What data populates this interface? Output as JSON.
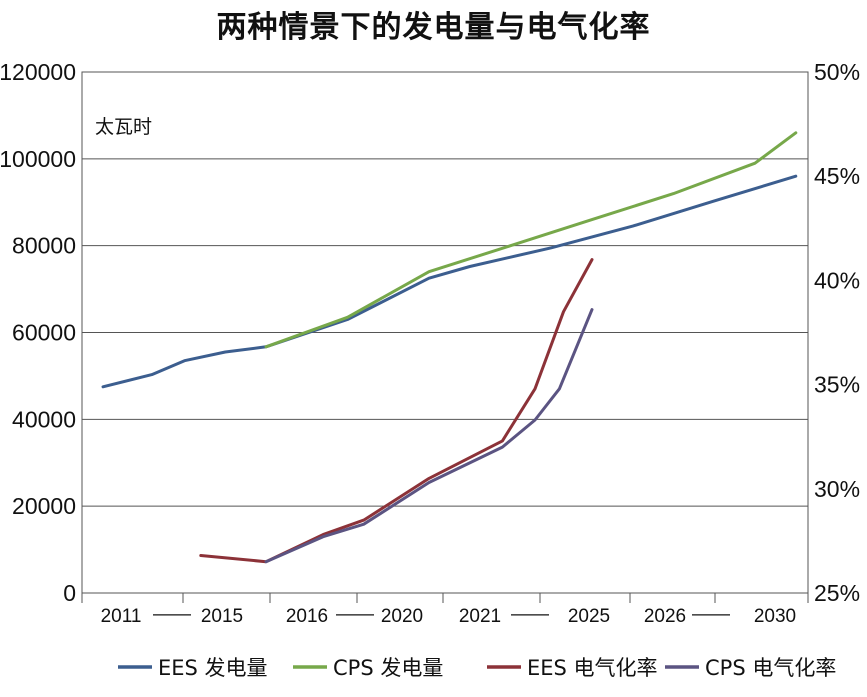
{
  "chart_data": {
    "type": "line",
    "title": "两种情景下的发电量与电气化率",
    "unit_label": "太瓦时",
    "categories": [
      "2011",
      "2015",
      "2016",
      "2020",
      "2021",
      "2025",
      "2026",
      "2030"
    ],
    "category_separators": [
      "——",
      "——",
      "——",
      "——"
    ],
    "y_left": {
      "min": 0,
      "max": 120000,
      "step": 20000,
      "ticks": [
        "0",
        "20000",
        "40000",
        "60000",
        "80000",
        "100000",
        "120000"
      ]
    },
    "y_right": {
      "min": 25,
      "max": 50,
      "step": 5,
      "ticks": [
        "25%",
        "30%",
        "35%",
        "40%",
        "45%",
        "50%"
      ]
    },
    "grid": true,
    "legend_position": "bottom",
    "series": [
      {
        "name": "EES 发电量",
        "axis": "left",
        "color": "#3c5e8f",
        "points": [
          [
            0.0,
            47500
          ],
          [
            0.6,
            50300
          ],
          [
            1.0,
            53500
          ],
          [
            1.5,
            55500
          ],
          [
            2.0,
            56700
          ],
          [
            3.0,
            63000
          ],
          [
            4.0,
            72500
          ],
          [
            4.5,
            75200
          ],
          [
            5.5,
            79500
          ],
          [
            6.5,
            84500
          ],
          [
            7.5,
            90300
          ],
          [
            8.5,
            96000
          ]
        ]
      },
      {
        "name": "CPS 发电量",
        "axis": "left",
        "color": "#77a84a",
        "points": [
          [
            2.0,
            56700
          ],
          [
            3.0,
            63500
          ],
          [
            4.0,
            74000
          ],
          [
            5.0,
            80000
          ],
          [
            6.0,
            86000
          ],
          [
            7.0,
            92000
          ],
          [
            8.0,
            99000
          ],
          [
            8.5,
            106000
          ]
        ]
      },
      {
        "name": "EES 电气化率",
        "axis": "right",
        "color": "#8c3238",
        "points": [
          [
            1.2,
            26.8
          ],
          [
            2.0,
            26.5
          ],
          [
            2.7,
            27.8
          ],
          [
            3.2,
            28.5
          ],
          [
            4.0,
            30.5
          ],
          [
            4.9,
            32.3
          ],
          [
            5.3,
            34.8
          ],
          [
            5.65,
            38.5
          ],
          [
            6.0,
            41.0
          ]
        ]
      },
      {
        "name": "CPS 电气化率",
        "axis": "right",
        "color": "#5b5482",
        "points": [
          [
            2.0,
            26.5
          ],
          [
            2.7,
            27.7
          ],
          [
            3.2,
            28.3
          ],
          [
            4.0,
            30.3
          ],
          [
            4.9,
            32.0
          ],
          [
            5.3,
            33.3
          ],
          [
            5.6,
            34.8
          ],
          [
            6.0,
            38.6
          ]
        ]
      }
    ],
    "legend_items": [
      "EES 发电量",
      "CPS 发电量",
      "EES 电气化率",
      "CPS 电气化率"
    ]
  }
}
